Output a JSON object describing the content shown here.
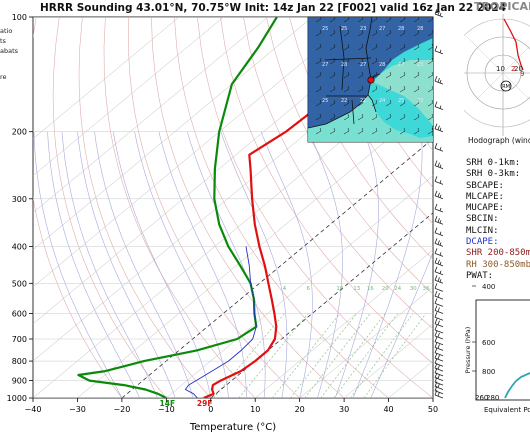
{
  "title": "HRRR Sounding 43.01°N, 70.75°W Init: 14z Jan 22 [F002] valid 16z Jan 22 2024",
  "legend_items": [
    "atio",
    "ts",
    "abats",
    "re"
  ],
  "colors": {
    "temperature": "#e01010",
    "dewpoint": "#0a8a0a",
    "parcel": "#2230c8",
    "dry_adiabat": "#d89a9a",
    "moist_adiabat": "#9a9ad8",
    "mixing_ratio": "#7ab87a",
    "isotherm_zero": "#333333",
    "barb": "#222222"
  },
  "chart_data": {
    "type": "line",
    "subtype": "skew-t",
    "xlabel": "Temperature (°C)",
    "ylabel": "",
    "xlim": [
      -40,
      50
    ],
    "ylim": [
      1000,
      100
    ],
    "y_scale": "log",
    "x_ticks": [
      -40,
      -30,
      -20,
      -10,
      0,
      10,
      20,
      30,
      40,
      50
    ],
    "y_ticks": [
      100,
      200,
      300,
      400,
      500,
      600,
      700,
      800,
      900,
      1000
    ],
    "mixing_ratio_labels": [
      "4",
      "6",
      "10",
      "13",
      "16",
      "20",
      "24",
      "30",
      "36"
    ],
    "surface_labels": {
      "temperature": "29F",
      "dewpoint": "14F"
    },
    "series": [
      {
        "role": "temperature",
        "pressure": [
          1000,
          975,
          950,
          925,
          900,
          850,
          800,
          750,
          700,
          650,
          600,
          550,
          500,
          450,
          400,
          350,
          300,
          250,
          230,
          200,
          150,
          120,
          100
        ],
        "values": [
          -1.6,
          -0.5,
          -2,
          -3,
          -2.5,
          -0.5,
          0,
          0,
          -1.5,
          -4.5,
          -8.5,
          -13,
          -18,
          -23.5,
          -30,
          -37,
          -44.5,
          -53,
          -57,
          -55,
          -54,
          -52,
          -50
        ]
      },
      {
        "role": "dewpoint",
        "pressure": [
          1000,
          975,
          950,
          925,
          900,
          870,
          850,
          800,
          750,
          700,
          650,
          600,
          550,
          500,
          450,
          400,
          350,
          300,
          250,
          200,
          150,
          120,
          100
        ],
        "values": [
          -10,
          -13,
          -17,
          -23,
          -32,
          -36,
          -31,
          -25,
          -16,
          -10,
          -9,
          -13,
          -17,
          -22,
          -29,
          -37,
          -45,
          -53,
          -61,
          -70,
          -80,
          -84,
          -88
        ]
      },
      {
        "role": "parcel",
        "pressure": [
          1000,
          975,
          950,
          925,
          900,
          850,
          800,
          750,
          700,
          650,
          600,
          550,
          500,
          450,
          400
        ],
        "values": [
          -3,
          -5,
          -8,
          -8.5,
          -8,
          -7,
          -6,
          -6,
          -6.5,
          -9,
          -13,
          -17,
          -22,
          -27,
          -33
        ]
      }
    ],
    "wind_barbs": [
      {
        "pressure": 1000
      },
      {
        "pressure": 975
      },
      {
        "pressure": 950
      },
      {
        "pressure": 925
      },
      {
        "pressure": 900
      },
      {
        "pressure": 875
      },
      {
        "pressure": 850
      },
      {
        "pressure": 825
      },
      {
        "pressure": 800
      },
      {
        "pressure": 775
      },
      {
        "pressure": 750
      },
      {
        "pressure": 725
      },
      {
        "pressure": 700
      },
      {
        "pressure": 675
      },
      {
        "pressure": 650
      },
      {
        "pressure": 625
      },
      {
        "pressure": 600
      },
      {
        "pressure": 575
      },
      {
        "pressure": 550
      },
      {
        "pressure": 525
      },
      {
        "pressure": 500
      },
      {
        "pressure": 475
      },
      {
        "pressure": 450
      },
      {
        "pressure": 425
      },
      {
        "pressure": 400
      },
      {
        "pressure": 375
      },
      {
        "pressure": 350
      },
      {
        "pressure": 325
      },
      {
        "pressure": 300
      },
      {
        "pressure": 275
      },
      {
        "pressure": 250
      },
      {
        "pressure": 225
      },
      {
        "pressure": 200
      },
      {
        "pressure": 175
      },
      {
        "pressure": 150
      },
      {
        "pressure": 125
      },
      {
        "pressure": 100
      }
    ]
  },
  "hodograph": {
    "title": "TROPICAL",
    "caption": "Hodograph (wind",
    "ring_labels": [
      "10",
      "20"
    ],
    "labels": [
      "2",
      "9"
    ],
    "marker_label": "RM"
  },
  "params": [
    {
      "label": "SRH 0-1km:",
      "color": "#111111"
    },
    {
      "label": "SRH 0-3km:",
      "color": "#111111"
    },
    {
      "label": "SBCAPE:",
      "color": "#111111"
    },
    {
      "label": "MLCAPE:",
      "color": "#111111"
    },
    {
      "label": "MUCAPE:",
      "color": "#111111"
    },
    {
      "label": "SBCIN:",
      "color": "#111111"
    },
    {
      "label": "MLCIN:",
      "color": "#111111"
    },
    {
      "label": "DCAPE:",
      "color": "#2233cc"
    },
    {
      "label": "SHR 200-850mb",
      "color": "#8b1a1a"
    },
    {
      "label": "RH 300-850mb",
      "color": "#8b5a2b"
    },
    {
      "label": "PWAT:",
      "color": "#111111"
    }
  ],
  "profile_inset": {
    "ylabel": "Pressure (hPa)",
    "xlabel": "Equivalent Po",
    "y_ticks": [
      "400",
      "600",
      "800"
    ],
    "x_ticks": [
      "260",
      "280"
    ]
  },
  "map_labels": [
    "25",
    "25",
    "23",
    "27",
    "28",
    "28",
    "27",
    "28",
    "27",
    "28",
    "27",
    "23",
    "25",
    "22",
    "22",
    "24",
    "25",
    "23"
  ]
}
